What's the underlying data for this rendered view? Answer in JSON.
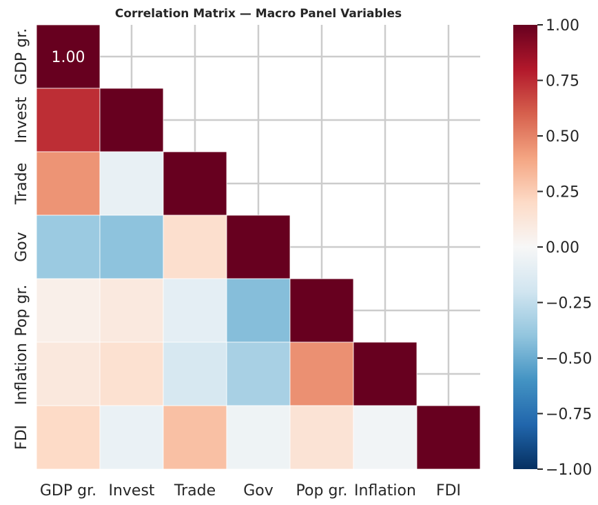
{
  "chart_data": {
    "type": "heatmap",
    "title": "Correlation Matrix — Macro Panel Variables",
    "variables": [
      "GDP gr.",
      "Invest",
      "Trade",
      "Gov",
      "Pop gr.",
      "Inflation",
      "FDI"
    ],
    "mask": "upper-triangle",
    "matrix": [
      [
        1.0,
        null,
        null,
        null,
        null,
        null,
        null
      ],
      [
        0.74,
        1.0,
        null,
        null,
        null,
        null,
        null
      ],
      [
        0.45,
        -0.08,
        1.0,
        null,
        null,
        null,
        null
      ],
      [
        -0.37,
        -0.41,
        0.17,
        1.0,
        null,
        null,
        null
      ],
      [
        0.06,
        0.1,
        -0.1,
        -0.43,
        1.0,
        null,
        null
      ],
      [
        0.11,
        0.16,
        -0.17,
        -0.33,
        0.46,
        1.0,
        null
      ],
      [
        0.2,
        -0.07,
        0.3,
        -0.05,
        0.14,
        -0.03,
        1.0
      ]
    ],
    "annotations": [
      {
        "row": 0,
        "col": 0,
        "text": "1.00"
      }
    ],
    "colorbar": {
      "colormap": "RdBu_r",
      "vmin": -1.0,
      "vmax": 1.0,
      "ticks": [
        "1.00",
        "0.75",
        "0.50",
        "0.25",
        "0.00",
        "−0.25",
        "−0.50",
        "−0.75",
        "−1.00"
      ],
      "tick_values": [
        1.0,
        0.75,
        0.5,
        0.25,
        0.0,
        -0.25,
        -0.5,
        -0.75,
        -1.0
      ]
    },
    "grid": true
  }
}
